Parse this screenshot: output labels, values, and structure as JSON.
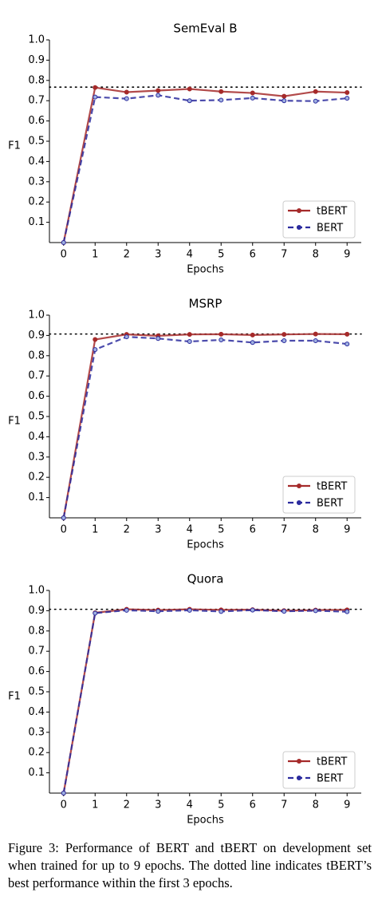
{
  "chart_data": [
    {
      "type": "line",
      "title": "SemEval B",
      "x_label": "Epochs",
      "y_label": "F1",
      "x": [
        0,
        1,
        2,
        3,
        4,
        5,
        6,
        7,
        8,
        9
      ],
      "xlim": [
        -0.45,
        9.45
      ],
      "xticks": [
        0,
        1,
        2,
        3,
        4,
        5,
        6,
        7,
        8,
        9
      ],
      "ylim": [
        0,
        1
      ],
      "yticks": [
        0.1,
        0.2,
        0.3,
        0.4,
        0.5,
        0.6,
        0.7,
        0.8,
        0.9,
        {
          "value": 1,
          "label": "1.0"
        }
      ],
      "reference_line": 0.767,
      "legend": "lower right",
      "series": [
        {
          "name": "tBERT",
          "color": "#a52a2a",
          "values": [
            0,
            0.765,
            0.742,
            0.75,
            0.758,
            0.745,
            0.738,
            0.722,
            0.745,
            0.74
          ]
        },
        {
          "name": "BERT",
          "color": "#2b2b9e",
          "values": [
            0,
            0.718,
            0.71,
            0.727,
            0.7,
            0.703,
            0.713,
            0.7,
            0.698,
            0.712
          ]
        }
      ]
    },
    {
      "type": "line",
      "title": "MSRP",
      "x_label": "Epochs",
      "y_label": "F1",
      "x": [
        0,
        1,
        2,
        3,
        4,
        5,
        6,
        7,
        8,
        9
      ],
      "xlim": [
        -0.45,
        9.45
      ],
      "xticks": [
        0,
        1,
        2,
        3,
        4,
        5,
        6,
        7,
        8,
        9
      ],
      "ylim": [
        0,
        1
      ],
      "yticks": [
        0.1,
        0.2,
        0.3,
        0.4,
        0.5,
        0.6,
        0.7,
        0.8,
        0.9,
        {
          "value": 1,
          "label": "1.0"
        }
      ],
      "reference_line": 0.907,
      "legend": "lower right",
      "series": [
        {
          "name": "tBERT",
          "color": "#a52a2a",
          "values": [
            0,
            0.88,
            0.905,
            0.898,
            0.905,
            0.906,
            0.902,
            0.905,
            0.907,
            0.906
          ]
        },
        {
          "name": "BERT",
          "color": "#2b2b9e",
          "values": [
            0,
            0.83,
            0.893,
            0.885,
            0.87,
            0.878,
            0.865,
            0.874,
            0.874,
            0.858
          ]
        }
      ]
    },
    {
      "type": "line",
      "title": "Quora",
      "x_label": "Epochs",
      "y_label": "F1",
      "x": [
        0,
        1,
        2,
        3,
        4,
        5,
        6,
        7,
        8,
        9
      ],
      "xlim": [
        -0.45,
        9.45
      ],
      "xticks": [
        0,
        1,
        2,
        3,
        4,
        5,
        6,
        7,
        8,
        9
      ],
      "ylim": [
        0,
        1
      ],
      "yticks": [
        0.1,
        0.2,
        0.3,
        0.4,
        0.5,
        0.6,
        0.7,
        0.8,
        0.9,
        {
          "value": 1,
          "label": "1.0"
        }
      ],
      "reference_line": 0.907,
      "legend": "lower right",
      "series": [
        {
          "name": "tBERT",
          "color": "#a52a2a",
          "values": [
            0,
            0.89,
            0.907,
            0.903,
            0.907,
            0.904,
            0.905,
            0.9,
            0.903,
            0.904
          ]
        },
        {
          "name": "BERT",
          "color": "#2b2b9e",
          "values": [
            0,
            0.888,
            0.902,
            0.897,
            0.902,
            0.896,
            0.903,
            0.897,
            0.9,
            0.895
          ]
        }
      ]
    }
  ],
  "caption": "Figure 3: Performance of BERT and tBERT on development set when trained for up to 9 epochs. The dotted line indicates tBERT’s best performance within the first 3 epochs."
}
